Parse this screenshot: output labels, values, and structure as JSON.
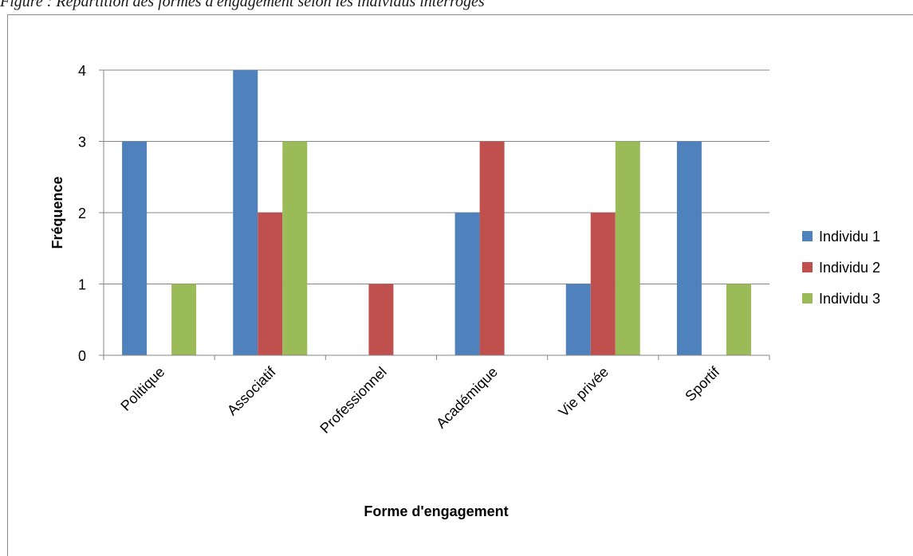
{
  "caption": "Figure : Répartition des formes d'engagement selon les individus interrogés",
  "chart_data": {
    "type": "bar",
    "title": "",
    "xlabel": "Forme d'engagement",
    "ylabel": "Fréquence",
    "ylim": [
      0,
      4
    ],
    "yticks": [
      0,
      1,
      2,
      3,
      4
    ],
    "grid": true,
    "legend_position": "right",
    "categories": [
      "Politique",
      "Associatif",
      "Professionnel",
      "Académique",
      "Vie privée",
      "Sportif"
    ],
    "series": [
      {
        "name": "Individu 1",
        "color": "#4f81bd",
        "values": [
          3,
          4,
          0,
          2,
          1,
          3
        ]
      },
      {
        "name": "Individu 2",
        "color": "#c0504d",
        "values": [
          0,
          2,
          1,
          3,
          2,
          0
        ]
      },
      {
        "name": "Individu 3",
        "color": "#9bbb59",
        "values": [
          1,
          3,
          0,
          0,
          3,
          1
        ]
      }
    ]
  }
}
